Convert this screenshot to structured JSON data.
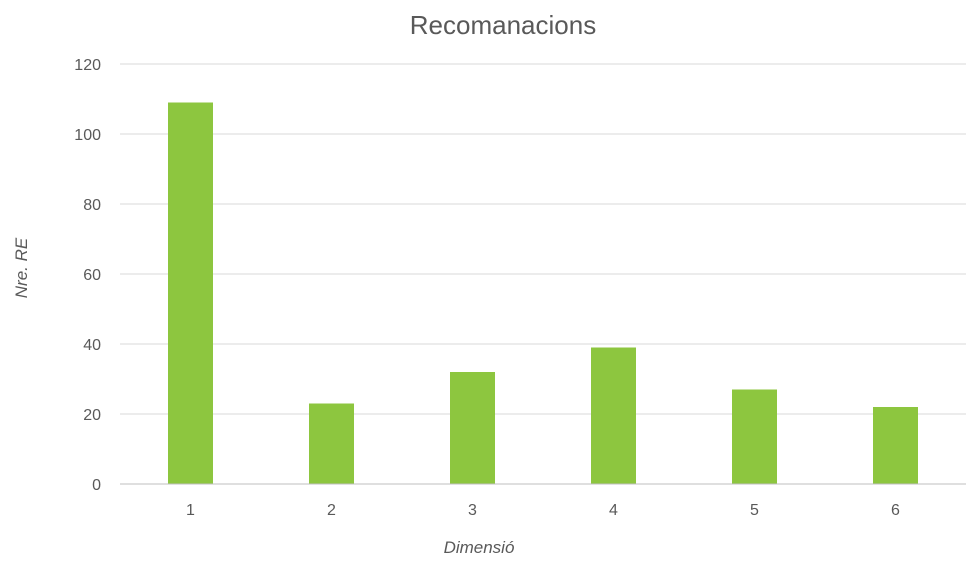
{
  "chart_data": {
    "type": "bar",
    "title": "Recomanacions",
    "xlabel": "Dimensió",
    "ylabel": "Nre. RE",
    "categories": [
      "1",
      "2",
      "3",
      "4",
      "5",
      "6"
    ],
    "values": [
      109,
      23,
      32,
      39,
      27,
      22
    ],
    "ylim": [
      0,
      120
    ],
    "yticks": [
      0,
      20,
      40,
      60,
      80,
      100,
      120
    ],
    "grid": true,
    "legend": "none",
    "bar_color": "#8DC63F"
  }
}
